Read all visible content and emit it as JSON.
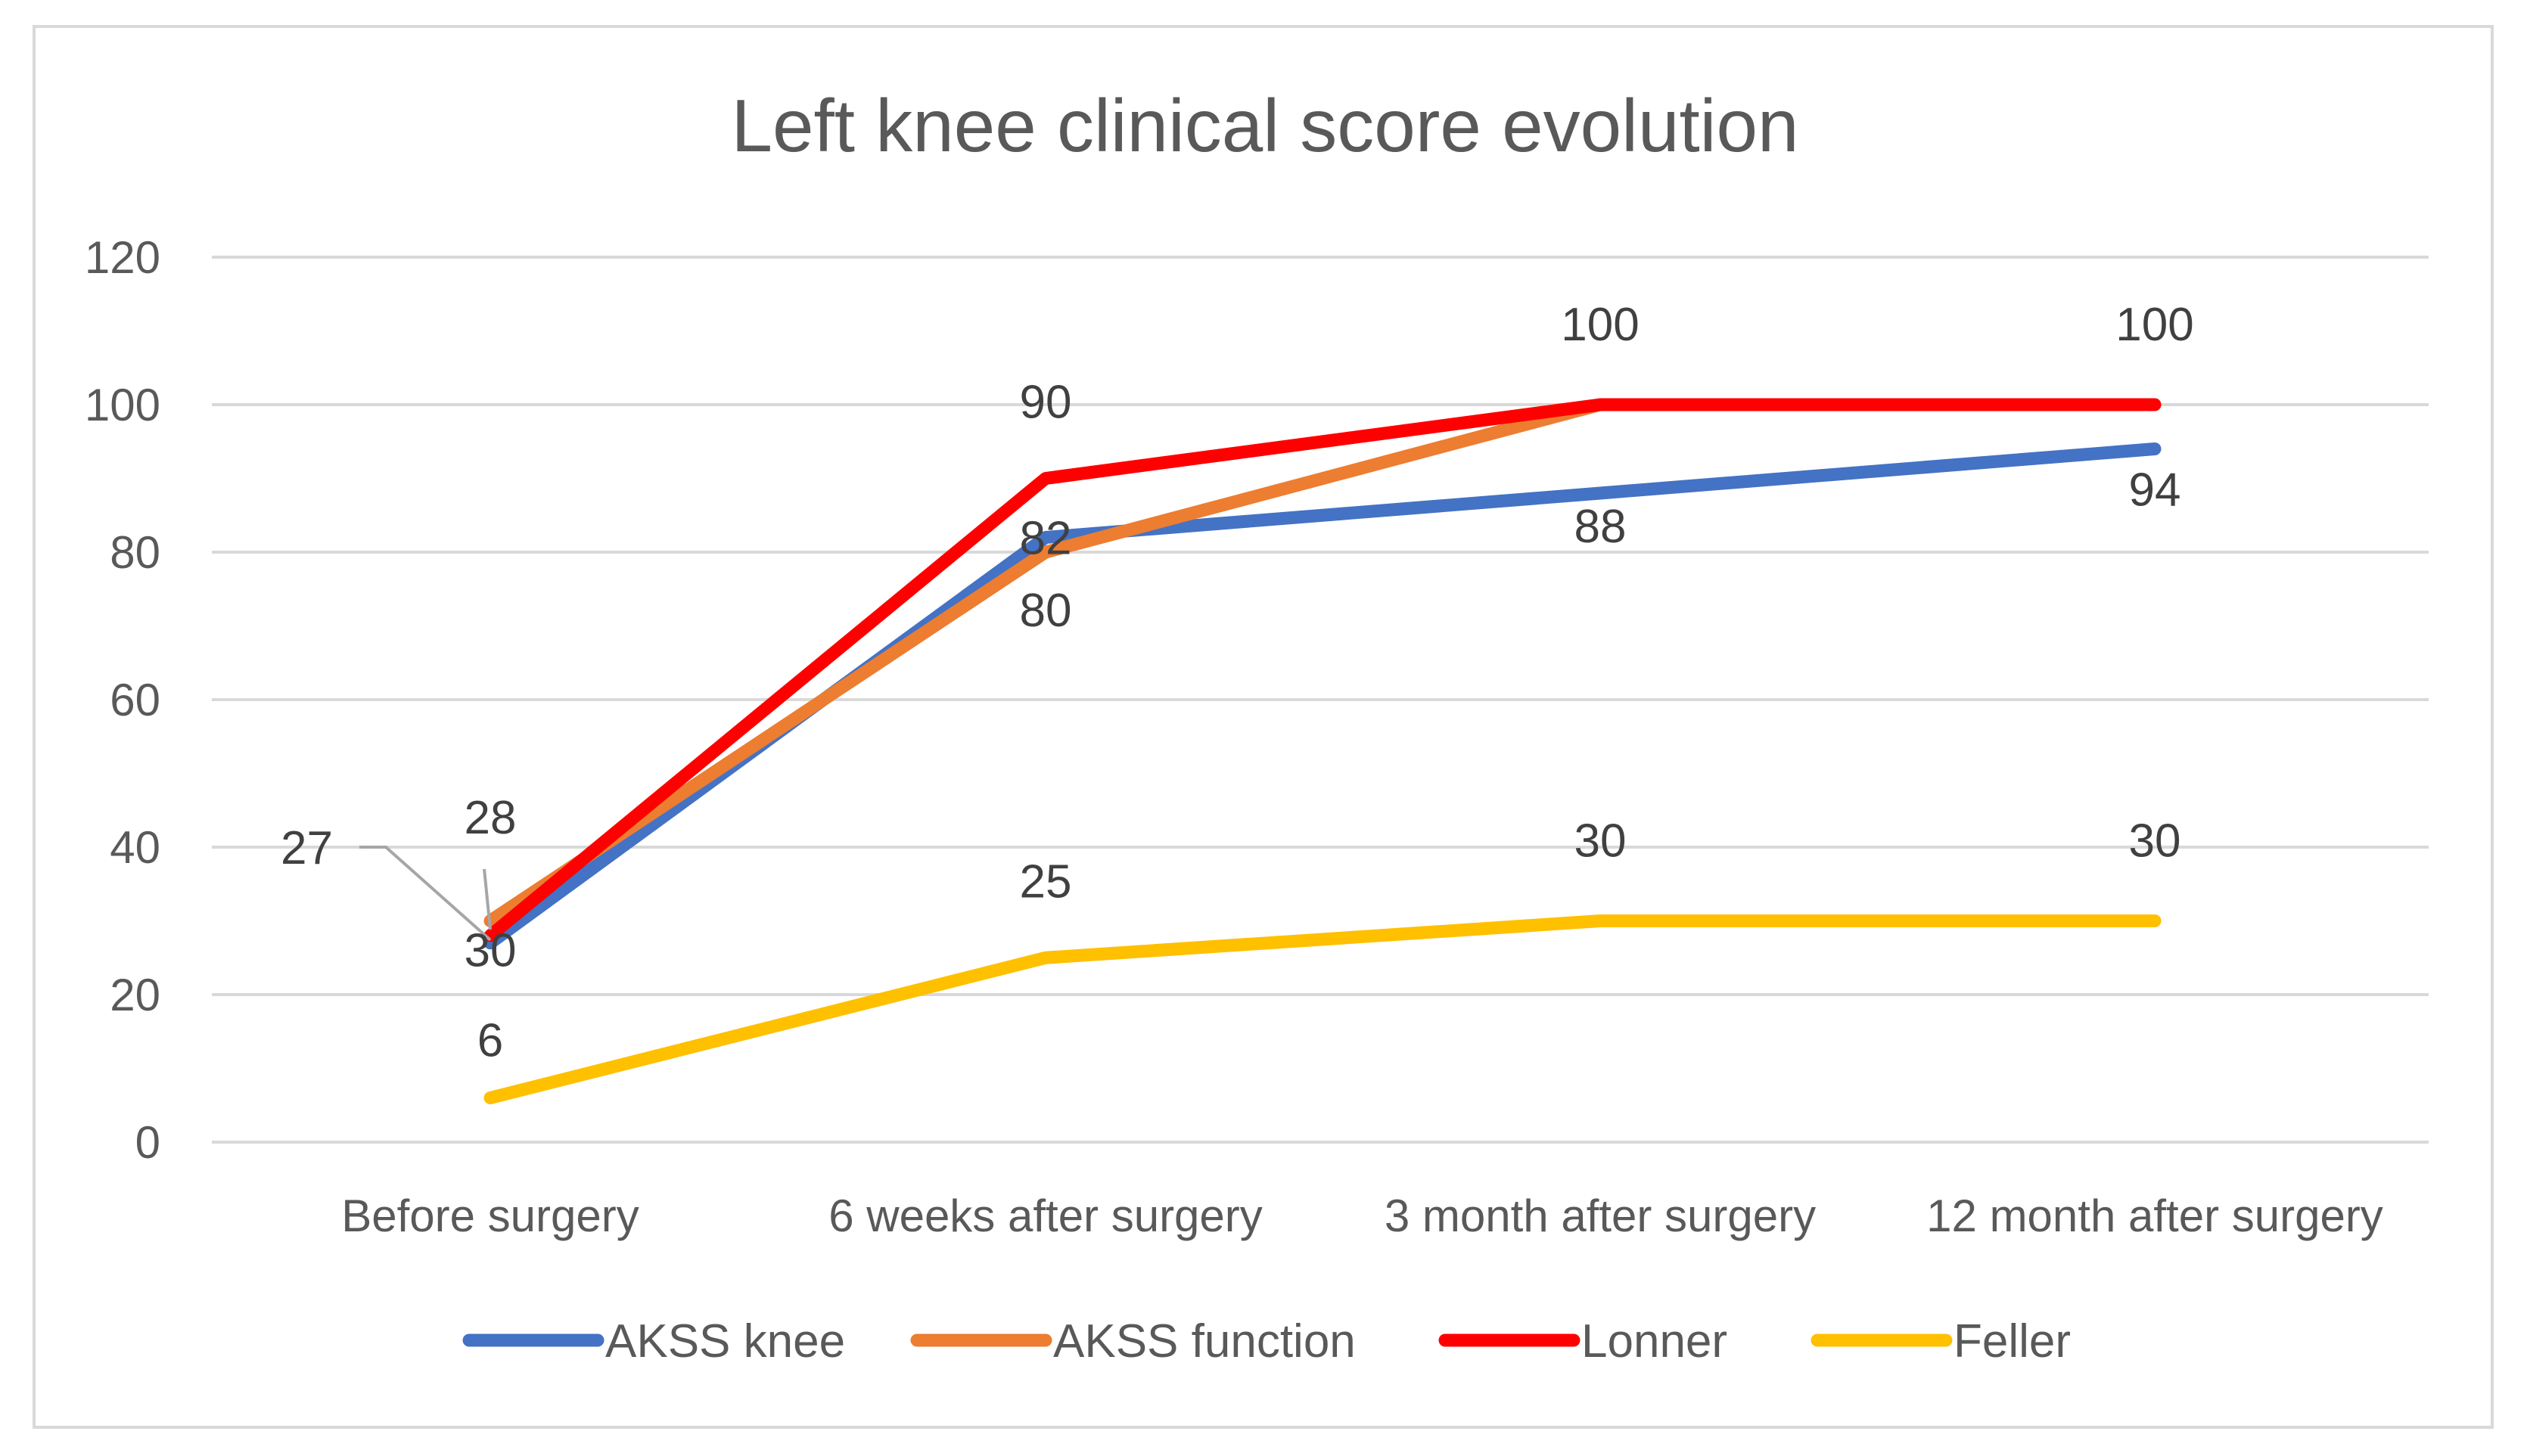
{
  "chart_data": {
    "type": "line",
    "title": "Left knee clinical score evolution",
    "xlabel": "",
    "ylabel": "",
    "categories": [
      "Before surgery",
      "6 weeks after surgery",
      "3 month after surgery",
      "12 month after surgery"
    ],
    "ylim": [
      0,
      120
    ],
    "yticks": [
      "0",
      "20",
      "40",
      "60",
      "80",
      "100",
      "120"
    ],
    "grid": true,
    "legend_position": "bottom",
    "series": [
      {
        "name": "AKSS knee",
        "color": "#4472C4",
        "values": [
          27,
          82,
          88,
          94
        ]
      },
      {
        "name": "AKSS function",
        "color": "#ED7D31",
        "values": [
          30,
          80,
          100,
          100
        ]
      },
      {
        "name": "Lonner",
        "color": "#FF0000",
        "values": [
          28,
          90,
          100,
          100
        ]
      },
      {
        "name": "Feller",
        "color": "#FFC000",
        "values": [
          6,
          25,
          30,
          30
        ]
      }
    ]
  }
}
